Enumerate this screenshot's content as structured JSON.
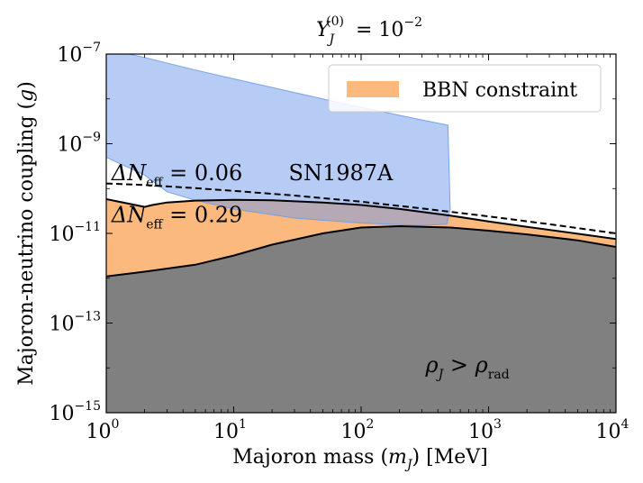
{
  "chart_data": {
    "type": "area",
    "title": "Y_J^(0) = 10^-2",
    "title_parts": {
      "base": "Y",
      "sub": "J",
      "sup": "(0)",
      "eq": "= 10",
      "eq_sup": "−2"
    },
    "xlabel": "Majoron mass (m_J) [MeV]",
    "xlabel_parts": {
      "pre": "Majoron mass (",
      "var": "m",
      "sub": "J",
      "post": ") [MeV]"
    },
    "ylabel": "Majoron-neutrino coupling (g)",
    "ylabel_parts": {
      "pre": "Majoron-neutrino coupling (",
      "var": "g",
      "post": ")"
    },
    "x_scale": "log",
    "y_scale": "log",
    "xlim": [
      1,
      10000
    ],
    "ylim": [
      1e-15,
      1e-07
    ],
    "x_ticks": [
      {
        "value": 1,
        "base": "10",
        "exp": "0"
      },
      {
        "value": 10,
        "base": "10",
        "exp": "1"
      },
      {
        "value": 100,
        "base": "10",
        "exp": "2"
      },
      {
        "value": 1000,
        "base": "10",
        "exp": "3"
      },
      {
        "value": 10000,
        "base": "10",
        "exp": "4"
      }
    ],
    "y_ticks": [
      {
        "value": 1e-07,
        "base": "10",
        "exp": "−7"
      },
      {
        "value": 1e-09,
        "base": "10",
        "exp": "−9"
      },
      {
        "value": 1e-11,
        "base": "10",
        "exp": "−11"
      },
      {
        "value": 1e-13,
        "base": "10",
        "exp": "−13"
      },
      {
        "value": 1e-15,
        "base": "10",
        "exp": "−15"
      }
    ],
    "legend": {
      "position": "top-right",
      "entries": [
        {
          "label": "BBN constraint",
          "color": "#fbb97e"
        }
      ]
    },
    "series": [
      {
        "name": "BBN constraint",
        "kind": "fill",
        "color": "#fbb97e",
        "x": [
          1,
          1.5,
          2,
          2.3,
          3,
          5,
          10,
          20,
          50,
          100,
          200,
          500,
          1000,
          2000,
          5000,
          10000
        ],
        "y": [
          5.8e-11,
          4.6e-11,
          3.9e-11,
          4.3e-11,
          4.9e-11,
          5.4e-11,
          5.6e-11,
          5.5e-11,
          4.9e-11,
          4.3e-11,
          3.5e-11,
          2.5e-11,
          1.85e-11,
          1.4e-11,
          9.8e-12,
          7.5e-12
        ],
        "lower_bound": "rho_J > rho_rad region"
      },
      {
        "name": "SN1987A",
        "kind": "fill",
        "color": "#6e9aec",
        "opacity": 0.5,
        "label_color": "#18208c",
        "x": [
          1,
          1.5,
          2,
          5,
          10,
          50,
          100,
          300,
          480,
          500,
          470,
          300,
          100,
          30,
          10,
          5,
          3,
          2,
          1
        ],
        "y": [
          1e-07,
          1e-07,
          8.4e-08,
          4.4e-08,
          2.8e-08,
          1e-08,
          6.5e-09,
          3.4e-09,
          2.6e-09,
          3.4e-11,
          1.6e-11,
          1.5e-11,
          1.7e-11,
          2.2e-11,
          3.5e-11,
          5.5e-11,
          8.5e-11,
          2e-10,
          5e-10
        ]
      },
      {
        "name": "ΔN_eff = 0.06",
        "kind": "line",
        "style": "dashed",
        "color": "#000000",
        "x": [
          1,
          2,
          5,
          10,
          30,
          100,
          300,
          1000,
          3000,
          10000
        ],
        "y": [
          1.3e-10,
          1.2e-10,
          1.02e-10,
          8.9e-11,
          7e-11,
          5.1e-11,
          3.6e-11,
          2.4e-11,
          1.6e-11,
          1e-11
        ]
      },
      {
        "name": "ΔN_eff = 0.29",
        "kind": "line",
        "style": "solid",
        "color": "#000000",
        "x": [
          1,
          1.5,
          2,
          2.3,
          3,
          5,
          10,
          20,
          50,
          100,
          200,
          500,
          1000,
          2000,
          5000,
          10000
        ],
        "y": [
          5.8e-11,
          4.6e-11,
          3.9e-11,
          4.3e-11,
          4.9e-11,
          5.4e-11,
          5.6e-11,
          5.5e-11,
          4.9e-11,
          4.3e-11,
          3.5e-11,
          2.5e-11,
          1.85e-11,
          1.4e-11,
          9.8e-12,
          7.5e-12
        ]
      },
      {
        "name": "ρ_J > ρ_rad",
        "kind": "fill",
        "color": "#808080",
        "x": [
          1,
          2,
          5,
          10,
          20,
          50,
          100,
          200,
          500,
          1000,
          2000,
          5000,
          10000
        ],
        "y": [
          1.1e-12,
          1.4e-12,
          2e-12,
          3.2e-12,
          5.6e-12,
          1e-11,
          1.35e-11,
          1.45e-11,
          1.35e-11,
          1.15e-11,
          9.5e-12,
          7e-12,
          5e-12
        ]
      }
    ],
    "annotations": [
      {
        "name": "dneff-006",
        "text_pre": "ΔN",
        "sub": "eff",
        "text_post": " = 0.06",
        "x": 1.1,
        "y": 1.55e-10
      },
      {
        "name": "dneff-029",
        "text_pre": "ΔN",
        "sub": "eff",
        "text_post": " = 0.29",
        "x": 1.1,
        "y": 1.8e-11
      },
      {
        "name": "sn1987a-label",
        "text": "SN1987A",
        "x": 27,
        "y": 1.55e-10,
        "color": "#18208c"
      },
      {
        "name": "rho-label",
        "var1": "ρ",
        "sub1": "J",
        "rel": " > ",
        "var2": "ρ",
        "sub2": "rad",
        "x": 320,
        "y": 8e-15
      }
    ]
  }
}
